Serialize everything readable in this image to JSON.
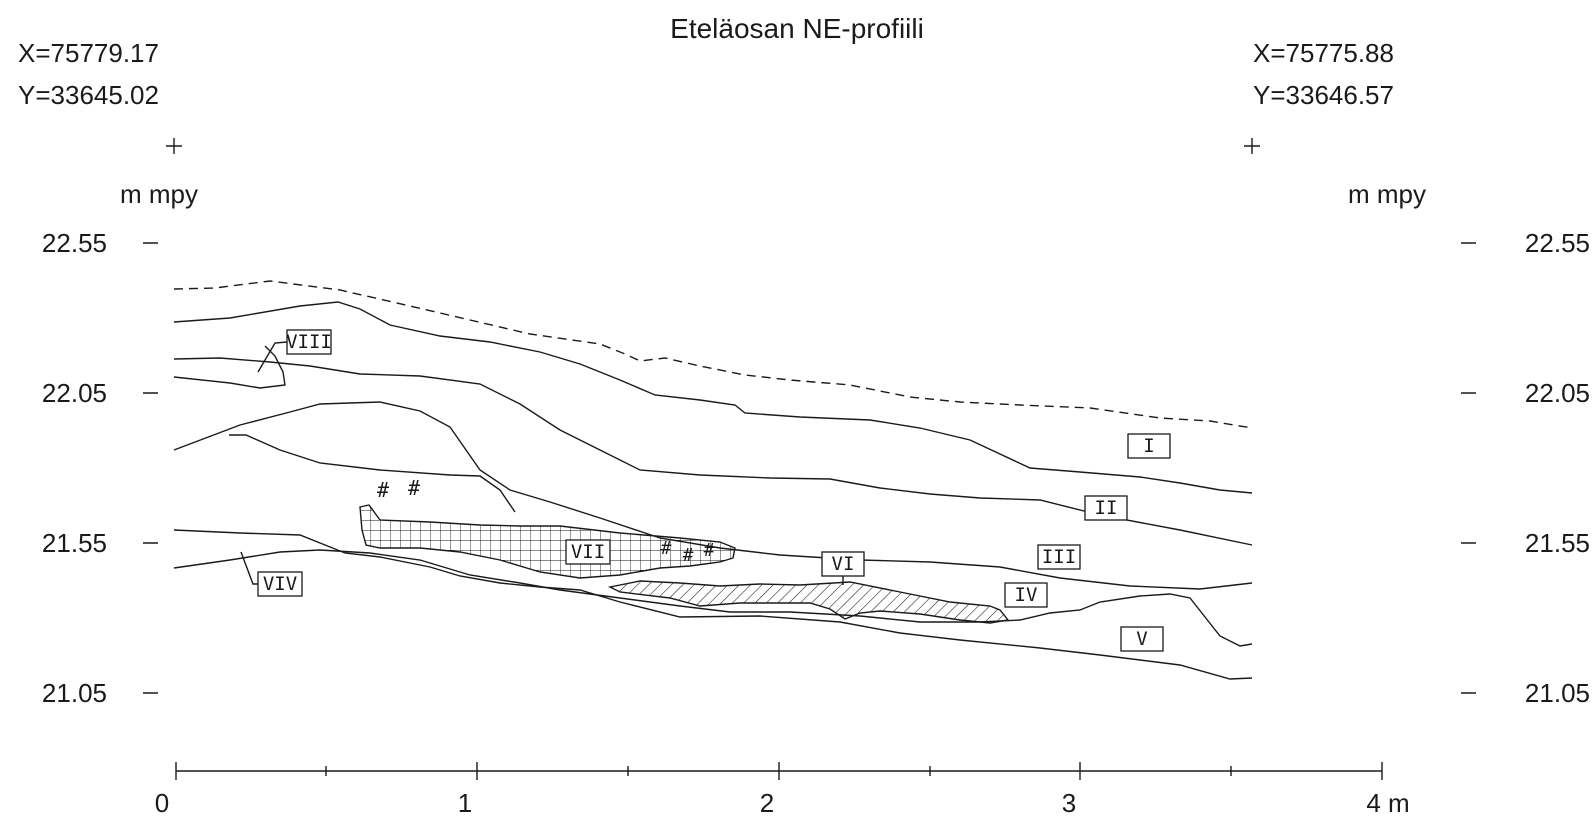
{
  "title": "Eteläosan NE-profiili",
  "coords": {
    "left_x": "X=75779.17",
    "left_y": "Y=33645.02",
    "right_x": "X=75775.88",
    "right_y": "Y=33646.57"
  },
  "axis": {
    "unit_left": "m mpy",
    "unit_right": "m mpy",
    "elevations": [
      "22.55",
      "22.05",
      "21.55",
      "21.05"
    ],
    "distance_ticks": [
      "0",
      "1",
      "2",
      "3",
      "4 m"
    ]
  },
  "layers": [
    "I",
    "II",
    "III",
    "IV",
    "V",
    "VI",
    "VII",
    "VIII",
    "VIV"
  ],
  "find_marker": "#",
  "colors": {
    "ink": "#1a1a1a",
    "background": "#ffffff"
  }
}
